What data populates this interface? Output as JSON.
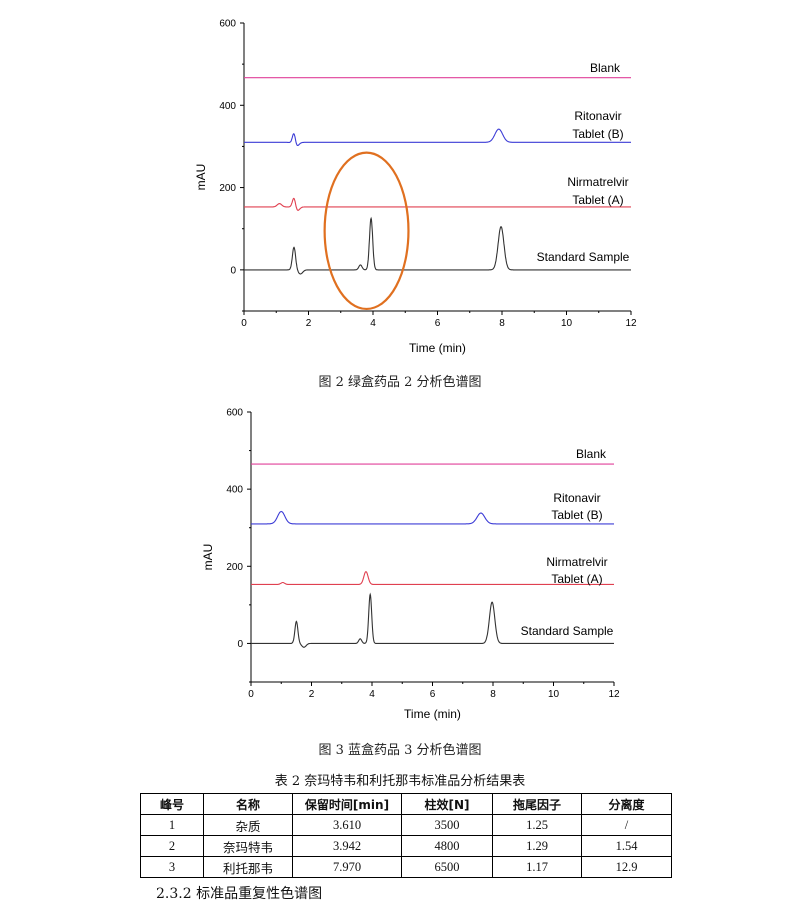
{
  "chart_data": [
    {
      "type": "line",
      "caption": "图 2  绿盒药品 2 分析色谱图",
      "xlabel": "Time (min)",
      "ylabel": "mAU",
      "xlim": [
        0,
        12
      ],
      "ylim": [
        -100,
        600
      ],
      "xticks": [
        0,
        2,
        4,
        6,
        8,
        10,
        12
      ],
      "yticks": [
        0,
        200,
        400,
        600
      ],
      "series": [
        {
          "name": "Blank",
          "color": "#e0409a",
          "baseline": 467,
          "peaks": []
        },
        {
          "name": "Ritonavir Tablet (B)",
          "color": "#3d3dd6",
          "baseline": 310,
          "peaks": [
            [
              1.55,
              32,
              0.05
            ],
            [
              1.6,
              -14,
              0.08
            ],
            [
              7.9,
              32,
              0.12
            ]
          ]
        },
        {
          "name": "Nirmatrelvir Tablet (A)",
          "color": "#e04050",
          "baseline": 153,
          "peaks": [
            [
              1.1,
              8,
              0.07
            ],
            [
              1.55,
              24,
              0.05
            ],
            [
              1.65,
              -10,
              0.07
            ]
          ]
        },
        {
          "name": "Standard Sample",
          "color": "#333333",
          "baseline": 0,
          "peaks": [
            [
              1.55,
              55,
              0.05
            ],
            [
              1.75,
              -10,
              0.07
            ],
            [
              3.61,
              12,
              0.05
            ],
            [
              3.94,
              125,
              0.05
            ],
            [
              7.97,
              105,
              0.09
            ]
          ]
        }
      ],
      "annotation": {
        "shape": "ellipse",
        "color": "#e07020",
        "cx": 3.8,
        "cy": 95,
        "rx": 1.3,
        "ry": 190
      }
    },
    {
      "type": "line",
      "caption": "图 3  蓝盒药品 3 分析色谱图",
      "xlabel": "Time (min)",
      "ylabel": "mAU",
      "xlim": [
        0,
        12
      ],
      "ylim": [
        -100,
        600
      ],
      "xticks": [
        0,
        2,
        4,
        6,
        8,
        10,
        12
      ],
      "yticks": [
        0,
        200,
        400,
        600
      ],
      "series": [
        {
          "name": "Blank",
          "color": "#e0409a",
          "baseline": 465,
          "peaks": []
        },
        {
          "name": "Ritonavir Tablet (B)",
          "color": "#3d3dd6",
          "baseline": 310,
          "peaks": [
            [
              1.0,
              32,
              0.12
            ],
            [
              7.6,
              28,
              0.13
            ]
          ]
        },
        {
          "name": "Nirmatrelvir Tablet (A)",
          "color": "#e04050",
          "baseline": 153,
          "peaks": [
            [
              1.05,
              5,
              0.06
            ],
            [
              3.8,
              33,
              0.07
            ]
          ]
        },
        {
          "name": "Standard Sample",
          "color": "#333333",
          "baseline": 0,
          "peaks": [
            [
              1.5,
              57,
              0.05
            ],
            [
              1.75,
              -10,
              0.07
            ],
            [
              3.61,
              12,
              0.05
            ],
            [
              3.94,
              127,
              0.05
            ],
            [
              7.97,
              107,
              0.09
            ]
          ]
        }
      ]
    }
  ],
  "table": {
    "title": "表 2 奈玛特韦和利托那韦标准品分析结果表",
    "headers": [
      "峰号",
      "名称",
      "保留时间[min]",
      "柱效[N]",
      "拖尾因子",
      "分离度"
    ],
    "rows": [
      [
        "1",
        "杂质",
        "3.610",
        "3500",
        "1.25",
        "/"
      ],
      [
        "2",
        "奈玛特韦",
        "3.942",
        "4800",
        "1.29",
        "1.54"
      ],
      [
        "3",
        "利托那韦",
        "7.970",
        "6500",
        "1.17",
        "12.9"
      ]
    ]
  },
  "section_heading": "2.3.2  标准品重复性色谱图"
}
